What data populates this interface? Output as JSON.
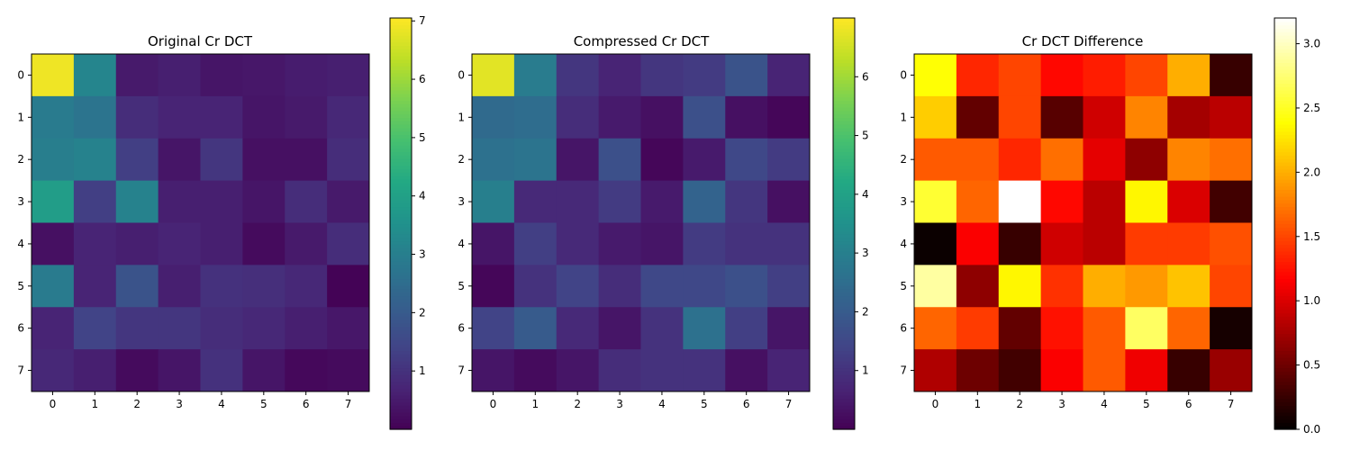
{
  "chart_data": [
    {
      "type": "heatmap",
      "title": "Original Cr DCT",
      "x_ticks": [
        "0",
        "1",
        "2",
        "3",
        "4",
        "5",
        "6",
        "7"
      ],
      "y_ticks": [
        "0",
        "1",
        "2",
        "3",
        "4",
        "5",
        "6",
        "7"
      ],
      "colormap": "viridis",
      "color_range": [
        0.0,
        7.05
      ],
      "colorbar_ticks": [
        "1",
        "2",
        "3",
        "4",
        "5",
        "6",
        "7"
      ],
      "colorbar_tick_values": [
        1,
        2,
        3,
        4,
        5,
        6,
        7
      ],
      "values": [
        [
          6.9,
          3.2,
          0.5,
          0.6,
          0.4,
          0.45,
          0.55,
          0.6
        ],
        [
          2.9,
          2.7,
          0.9,
          0.7,
          0.7,
          0.4,
          0.5,
          0.8
        ],
        [
          3.0,
          3.1,
          1.3,
          0.4,
          1.1,
          0.3,
          0.3,
          0.9
        ],
        [
          3.9,
          1.3,
          3.1,
          0.6,
          0.6,
          0.4,
          0.9,
          0.5
        ],
        [
          0.3,
          0.7,
          0.6,
          0.7,
          0.6,
          0.2,
          0.5,
          0.9
        ],
        [
          2.9,
          0.7,
          1.8,
          0.6,
          1.0,
          0.95,
          0.8,
          0.05
        ],
        [
          0.7,
          1.4,
          1.1,
          1.1,
          0.9,
          0.8,
          0.6,
          0.45
        ],
        [
          0.8,
          0.6,
          0.2,
          0.4,
          1.0,
          0.4,
          0.15,
          0.2
        ]
      ]
    },
    {
      "type": "heatmap",
      "title": "Compressed Cr DCT",
      "x_ticks": [
        "0",
        "1",
        "2",
        "3",
        "4",
        "5",
        "6",
        "7"
      ],
      "y_ticks": [
        "0",
        "1",
        "2",
        "3",
        "4",
        "5",
        "6",
        "7"
      ],
      "colormap": "viridis",
      "color_range": [
        0.0,
        7.0
      ],
      "colorbar_ticks": [
        "1",
        "2",
        "3",
        "4",
        "5",
        "6"
      ],
      "colorbar_tick_values": [
        1,
        2,
        3,
        4,
        5,
        6
      ],
      "values": [
        [
          6.7,
          2.9,
          1.1,
          0.7,
          1.1,
          1.2,
          1.8,
          0.7
        ],
        [
          2.4,
          2.5,
          0.9,
          0.5,
          0.3,
          1.7,
          0.3,
          0.1
        ],
        [
          2.6,
          2.7,
          0.4,
          1.7,
          0.1,
          0.5,
          1.5,
          1.2
        ],
        [
          3.0,
          0.8,
          0.8,
          1.2,
          0.5,
          2.2,
          1.1,
          0.3
        ],
        [
          0.4,
          1.3,
          0.8,
          0.5,
          0.4,
          1.2,
          1.0,
          1.0
        ],
        [
          0.1,
          1.0,
          1.4,
          0.9,
          1.5,
          1.5,
          1.7,
          1.3
        ],
        [
          1.4,
          2.0,
          0.8,
          0.4,
          1.0,
          2.6,
          1.3,
          0.4
        ],
        [
          0.4,
          0.2,
          0.4,
          0.9,
          1.0,
          1.0,
          0.3,
          0.7
        ]
      ]
    },
    {
      "type": "heatmap",
      "title": "Cr DCT Difference",
      "x_ticks": [
        "0",
        "1",
        "2",
        "3",
        "4",
        "5",
        "6",
        "7"
      ],
      "y_ticks": [
        "0",
        "1",
        "2",
        "3",
        "4",
        "5",
        "6",
        "7"
      ],
      "colormap": "hot",
      "color_range": [
        0.0,
        3.2
      ],
      "colorbar_ticks": [
        "0.0",
        "0.5",
        "1.0",
        "1.5",
        "2.0",
        "2.5",
        "3.0"
      ],
      "colorbar_tick_values": [
        0.0,
        0.5,
        1.0,
        1.5,
        2.0,
        2.5,
        3.0
      ],
      "values": [
        [
          2.4,
          1.35,
          1.5,
          1.2,
          1.3,
          1.5,
          2.0,
          0.25
        ],
        [
          2.15,
          0.45,
          1.5,
          0.4,
          0.95,
          1.8,
          0.75,
          0.85
        ],
        [
          1.6,
          1.6,
          1.35,
          1.7,
          1.05,
          0.65,
          1.8,
          1.7
        ],
        [
          2.55,
          1.65,
          3.2,
          1.2,
          0.85,
          2.35,
          1.0,
          0.3
        ],
        [
          0.05,
          1.15,
          0.25,
          0.95,
          0.85,
          1.45,
          1.45,
          1.55
        ],
        [
          2.9,
          0.65,
          2.35,
          1.4,
          2.0,
          1.9,
          2.1,
          1.5
        ],
        [
          1.65,
          1.45,
          0.45,
          1.25,
          1.6,
          2.7,
          1.65,
          0.1
        ],
        [
          0.8,
          0.5,
          0.3,
          1.15,
          1.6,
          1.1,
          0.25,
          0.7
        ]
      ]
    }
  ]
}
